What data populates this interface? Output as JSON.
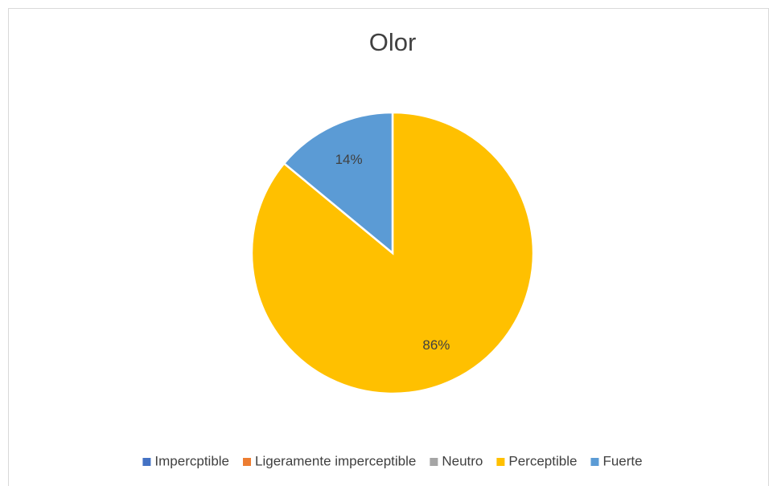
{
  "chart_data": {
    "type": "pie",
    "title": "Olor",
    "categories": [
      "Impercptible",
      "Ligeramente imperceptible",
      "Neutro",
      "Perceptible",
      "Fuerte"
    ],
    "values": [
      0,
      0,
      0,
      86,
      14
    ],
    "value_labels": [
      null,
      null,
      null,
      "86%",
      "14%"
    ],
    "colors": [
      "#4472c4",
      "#ed7d31",
      "#a5a5a5",
      "#ffc000",
      "#5b9bd5"
    ],
    "legend": "bottom"
  }
}
